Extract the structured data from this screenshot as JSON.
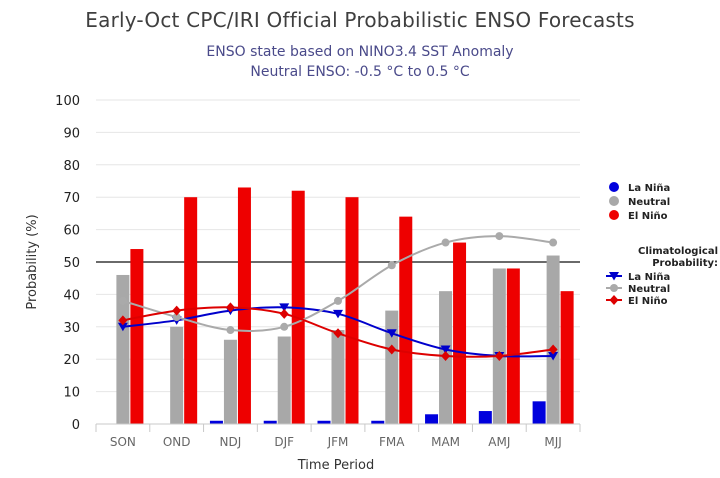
{
  "chart_data": {
    "type": "bar",
    "title": "Early-Oct CPC/IRI Official Probabilistic ENSO Forecasts",
    "subtitle": [
      "ENSO state based on NINO3.4 SST Anomaly",
      "Neutral ENSO: -0.5 °C to 0.5 °C"
    ],
    "xlabel": "Time Period",
    "ylabel": "Probability (%)",
    "ylim": [
      0,
      100
    ],
    "yticks": [
      0,
      10,
      20,
      30,
      40,
      50,
      60,
      70,
      80,
      90,
      100
    ],
    "reference_line": 50,
    "categories": [
      "SON",
      "OND",
      "NDJ",
      "DJF",
      "JFM",
      "FMA",
      "MAM",
      "AMJ",
      "MJJ"
    ],
    "series": [
      {
        "name": "La Niña",
        "kind": "bar",
        "color": "#0000dd",
        "values": [
          0,
          0,
          1,
          1,
          1,
          1,
          3,
          4,
          7
        ]
      },
      {
        "name": "Neutral",
        "kind": "bar",
        "color": "#a8a8a8",
        "values": [
          46,
          30,
          26,
          27,
          29,
          35,
          41,
          48,
          52
        ]
      },
      {
        "name": "El Niño",
        "kind": "bar",
        "color": "#ee0000",
        "values": [
          54,
          70,
          73,
          72,
          70,
          64,
          56,
          48,
          41
        ]
      }
    ],
    "climatology_title": [
      "Climatological",
      "Probability:"
    ],
    "climatology": [
      {
        "name": "La Niña",
        "kind": "line",
        "marker": "triangle-down",
        "color": "#0000cc",
        "values": [
          30,
          32,
          35,
          36,
          34,
          28,
          23,
          21,
          21
        ]
      },
      {
        "name": "Neutral",
        "kind": "line",
        "marker": "circle",
        "color": "#aaaaaa",
        "values": [
          38,
          33,
          29,
          30,
          38,
          49,
          56,
          58,
          56
        ]
      },
      {
        "name": "El Niño",
        "kind": "line",
        "marker": "diamond",
        "color": "#dd0000",
        "values": [
          32,
          35,
          36,
          34,
          28,
          23,
          21,
          21,
          23
        ]
      }
    ],
    "legend_position": "right",
    "grid": true
  }
}
